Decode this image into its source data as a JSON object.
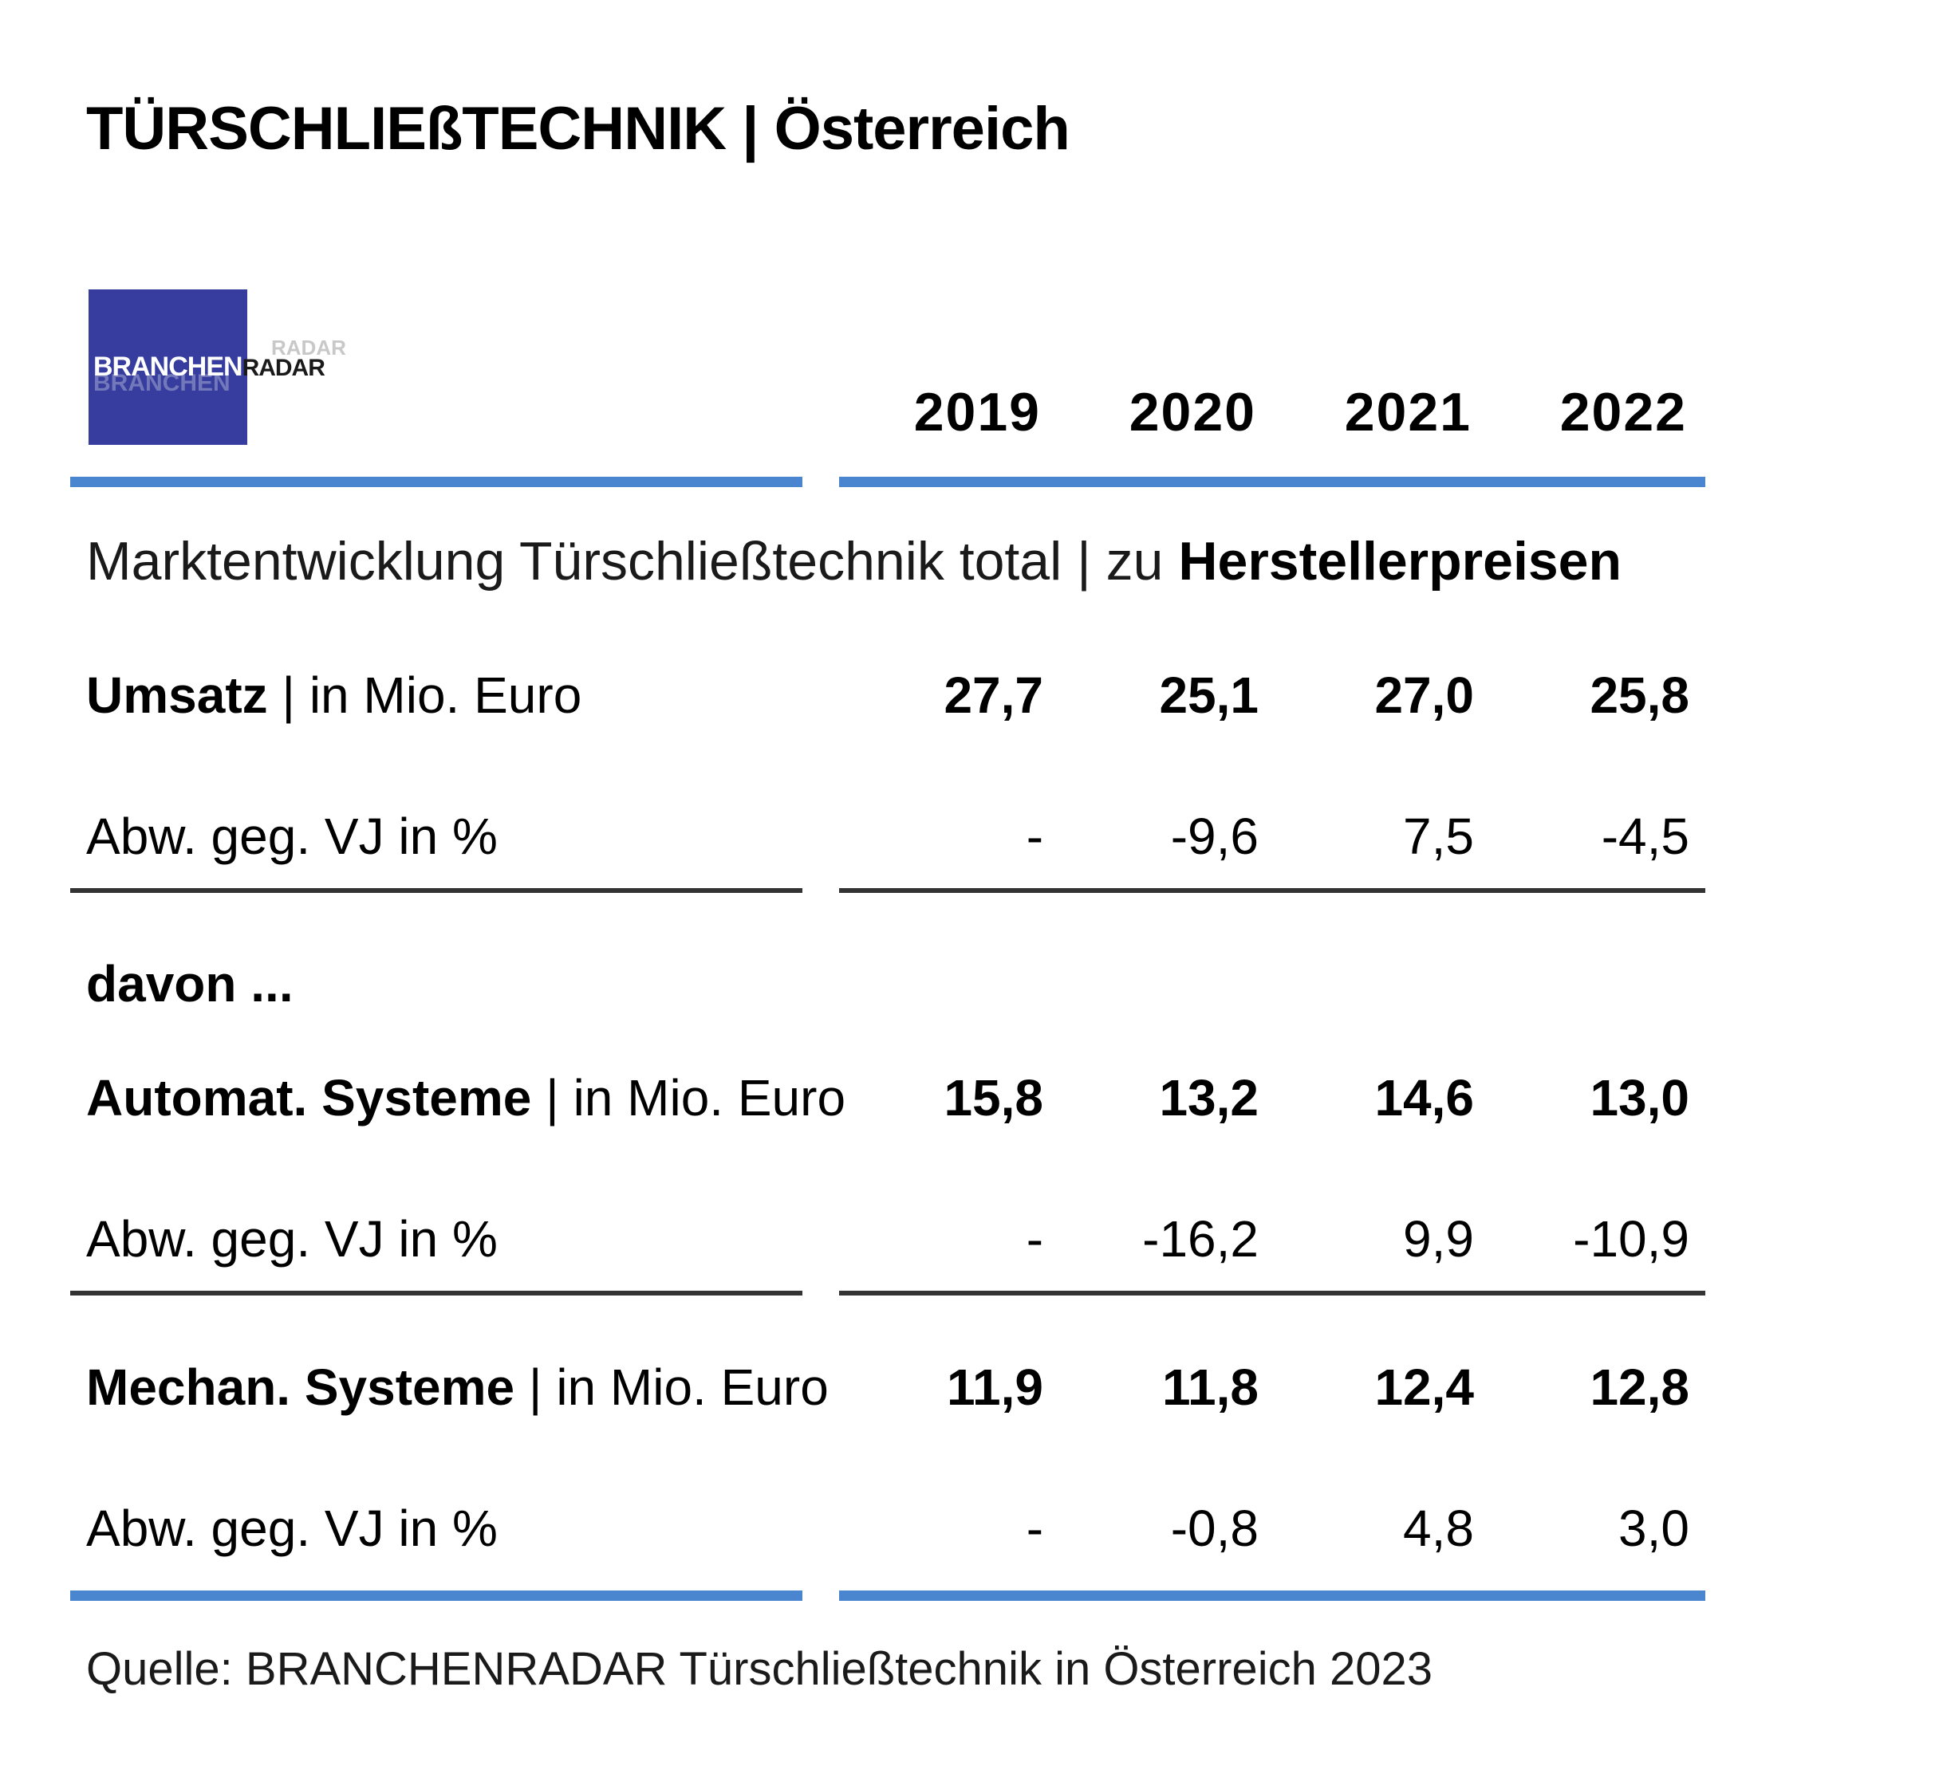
{
  "title": "TÜRSCHLIEßTECHNIK | Österreich",
  "logo": {
    "part1": "BRANCHEN",
    "part2": "RADAR"
  },
  "chart_data": {
    "type": "table",
    "title": "TÜRSCHLIEßTECHNIK | Österreich",
    "columns": [
      "2019",
      "2020",
      "2021",
      "2022"
    ],
    "section": {
      "prefix": "Marktentwicklung Türschließtechnik total | zu ",
      "emphasis": "Herstellerpreisen"
    },
    "rows": [
      {
        "label_bold": "Umsatz",
        "label_rest": "| in Mio. Euro",
        "values": [
          "27,7",
          "25,1",
          "27,0",
          "25,8"
        ],
        "bold": true
      },
      {
        "label": "Abw. geg. VJ in %",
        "values": [
          "-",
          "-9,6",
          "7,5",
          "-4,5"
        ],
        "bold": false
      },
      {
        "label_bold": "davon ...",
        "values": [],
        "bold": true
      },
      {
        "label_bold": "Automat. Systeme",
        "label_rest": "| in Mio. Euro",
        "values": [
          "15,8",
          "13,2",
          "14,6",
          "13,0"
        ],
        "bold": true
      },
      {
        "label": "Abw. geg. VJ in %",
        "values": [
          "-",
          "-16,2",
          "9,9",
          "-10,9"
        ],
        "bold": false
      },
      {
        "label_bold": "Mechan. Systeme",
        "label_rest": "| in Mio. Euro",
        "values": [
          "11,9",
          "11,8",
          "12,4",
          "12,8"
        ],
        "bold": true
      },
      {
        "label": "Abw. geg. VJ in %",
        "values": [
          "-",
          "-0,8",
          "4,8",
          "3,0"
        ],
        "bold": false
      }
    ],
    "source": "Quelle: BRANCHENRADAR Türschließtechnik in Österreich 2023"
  },
  "colors": {
    "accent_rule": "#4a86d0",
    "dark_rule": "#333333",
    "logo_bg": "#373d9e"
  }
}
